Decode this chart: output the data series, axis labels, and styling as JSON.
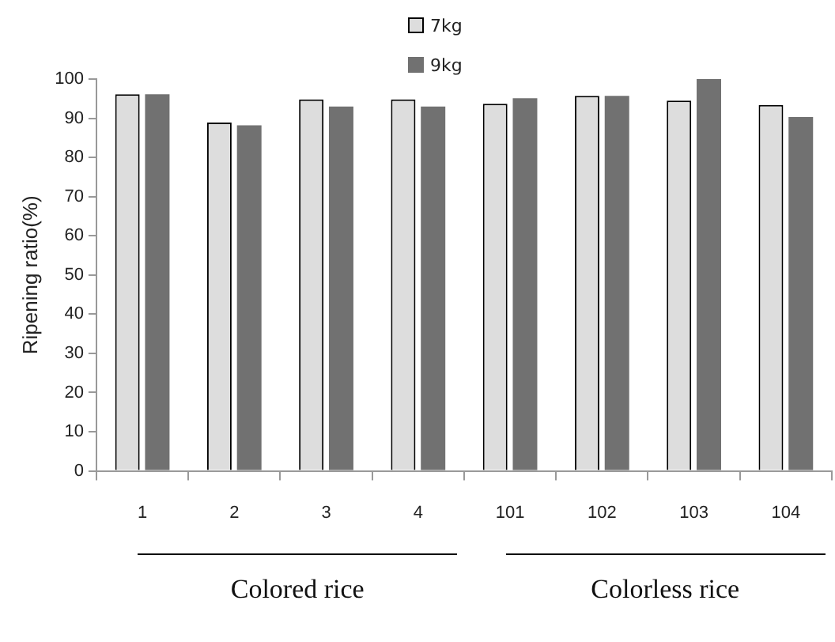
{
  "chart_data": {
    "type": "bar",
    "ylabel": "Ripening ratio(%)",
    "categories": [
      "1",
      "2",
      "3",
      "4",
      "101",
      "102",
      "103",
      "104"
    ],
    "series": [
      {
        "name": "7kg",
        "color": "#dddddd",
        "values": [
          96.1,
          88.9,
          94.8,
          94.8,
          93.7,
          95.7,
          94.5,
          93.4
        ]
      },
      {
        "name": "9kg",
        "color": "#717171",
        "values": [
          96.1,
          88.2,
          93.0,
          93.0,
          95.1,
          95.7,
          100,
          90.3
        ]
      }
    ],
    "ylim": [
      0,
      100
    ],
    "yticks": [
      0,
      10,
      20,
      30,
      40,
      50,
      60,
      70,
      80,
      90,
      100
    ],
    "grid": false,
    "legend": "top",
    "annotations": [
      "Colored rice",
      "Colorless rice"
    ]
  }
}
